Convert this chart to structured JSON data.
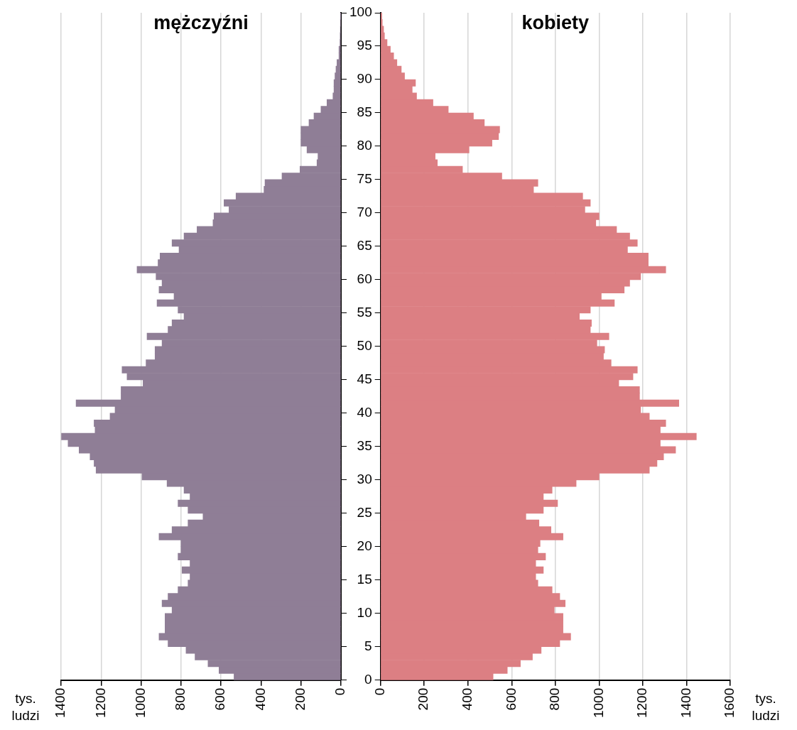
{
  "chart_data": [
    {
      "type": "histogram",
      "orientation": "horizontal",
      "title": "mężczyźni",
      "xlabel": "tys. ludzi",
      "color": "#8f7e96",
      "bins": [
        0,
        1,
        2,
        3,
        4,
        5,
        6,
        7,
        8,
        9,
        10,
        11,
        12,
        13,
        14,
        15,
        16,
        17,
        18,
        19,
        20,
        21,
        22,
        23,
        24,
        25,
        26,
        27,
        28,
        29,
        30,
        31,
        32,
        33,
        34,
        35,
        36,
        37,
        38,
        39,
        40,
        41,
        42,
        43,
        44,
        45,
        46,
        47,
        48,
        49,
        50,
        51,
        52,
        53,
        54,
        55,
        56,
        57,
        58,
        59,
        60,
        61,
        62,
        63,
        64,
        65,
        66,
        67,
        68,
        69,
        70,
        71,
        72,
        73,
        74,
        75,
        76,
        77,
        78,
        79,
        80,
        81,
        82,
        83,
        84,
        85,
        86,
        87,
        88,
        89,
        90,
        91,
        92,
        93,
        94,
        95,
        96,
        97,
        98,
        99,
        100
      ],
      "values": [
        535,
        610,
        665,
        730,
        775,
        865,
        910,
        880,
        880,
        880,
        845,
        895,
        865,
        815,
        765,
        755,
        795,
        755,
        815,
        800,
        800,
        910,
        845,
        765,
        690,
        765,
        815,
        755,
        785,
        870,
        995,
        1225,
        1235,
        1255,
        1310,
        1365,
        1398,
        1230,
        1235,
        1155,
        1130,
        1325,
        1100,
        1100,
        990,
        1070,
        1095,
        975,
        930,
        930,
        895,
        970,
        865,
        845,
        785,
        815,
        920,
        835,
        910,
        895,
        925,
        1020,
        915,
        905,
        810,
        845,
        785,
        720,
        640,
        635,
        560,
        585,
        525,
        385,
        380,
        295,
        205,
        120,
        115,
        170,
        200,
        200,
        200,
        160,
        135,
        100,
        70,
        40,
        35,
        35,
        30,
        25,
        20,
        10,
        10,
        5,
        4,
        3,
        2,
        1
      ],
      "xlim": [
        1400,
        0
      ],
      "xticks": [
        0,
        200,
        400,
        600,
        800,
        1000,
        1200,
        1400
      ],
      "ylim": [
        0,
        100
      ],
      "yticks": [
        0,
        5,
        10,
        15,
        20,
        25,
        30,
        35,
        40,
        45,
        50,
        55,
        60,
        65,
        70,
        75,
        80,
        85,
        90,
        95,
        100
      ],
      "grid": "x",
      "tick_labels": "x"
    },
    {
      "type": "histogram",
      "orientation": "horizontal",
      "title": "kobiety",
      "xlabel": "tys. ludzi",
      "color": "#dc7f83",
      "bins": [
        0,
        1,
        2,
        3,
        4,
        5,
        6,
        7,
        8,
        9,
        10,
        11,
        12,
        13,
        14,
        15,
        16,
        17,
        18,
        19,
        20,
        21,
        22,
        23,
        24,
        25,
        26,
        27,
        28,
        29,
        30,
        31,
        32,
        33,
        34,
        35,
        36,
        37,
        38,
        39,
        40,
        41,
        42,
        43,
        44,
        45,
        46,
        47,
        48,
        49,
        50,
        51,
        52,
        53,
        54,
        55,
        56,
        57,
        58,
        59,
        60,
        61,
        62,
        63,
        64,
        65,
        66,
        67,
        68,
        69,
        70,
        71,
        72,
        73,
        74,
        75,
        76,
        77,
        78,
        79,
        80,
        81,
        82,
        83,
        84,
        85,
        86,
        87,
        88,
        89,
        90,
        91,
        92,
        93,
        94,
        95,
        96,
        97,
        98,
        99,
        100
      ],
      "values": [
        515,
        580,
        640,
        695,
        735,
        820,
        870,
        835,
        835,
        835,
        795,
        845,
        820,
        785,
        720,
        710,
        745,
        710,
        755,
        720,
        730,
        835,
        780,
        725,
        665,
        745,
        810,
        745,
        785,
        895,
        1000,
        1230,
        1265,
        1295,
        1350,
        1280,
        1445,
        1280,
        1305,
        1230,
        1190,
        1365,
        1185,
        1185,
        1090,
        1155,
        1175,
        1055,
        1020,
        1025,
        990,
        1045,
        960,
        965,
        910,
        960,
        1070,
        1010,
        1115,
        1140,
        1190,
        1305,
        1225,
        1225,
        1130,
        1175,
        1140,
        1080,
        985,
        1000,
        935,
        960,
        925,
        700,
        720,
        555,
        375,
        260,
        250,
        405,
        510,
        540,
        545,
        475,
        425,
        310,
        240,
        165,
        145,
        160,
        110,
        95,
        75,
        60,
        45,
        30,
        18,
        14,
        8,
        6
      ],
      "xlim": [
        0,
        1600
      ],
      "xticks": [
        0,
        200,
        400,
        600,
        800,
        1000,
        1200,
        1400,
        1600
      ],
      "ylim": [
        0,
        100
      ],
      "yticks": [
        0,
        5,
        10,
        15,
        20,
        25,
        30,
        35,
        40,
        45,
        50,
        55,
        60,
        65,
        70,
        75,
        80,
        85,
        90,
        95,
        100
      ],
      "grid": "x"
    }
  ]
}
